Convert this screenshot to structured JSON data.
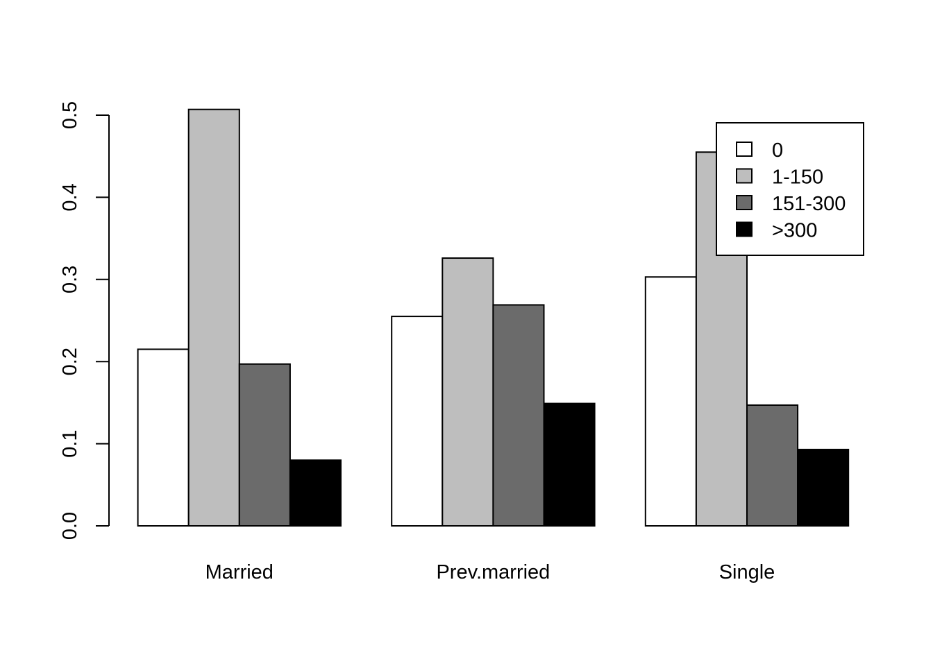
{
  "chart_data": {
    "type": "bar",
    "layout": "grouped",
    "categories": [
      "Married",
      "Prev.married",
      "Single"
    ],
    "series": [
      {
        "name": "0",
        "color": "#ffffff",
        "values": [
          0.215,
          0.255,
          0.303
        ]
      },
      {
        "name": "1-150",
        "color": "#bebebe",
        "values": [
          0.507,
          0.326,
          0.455
        ]
      },
      {
        "name": "151-300",
        "color": "#6b6b6b",
        "values": [
          0.197,
          0.269,
          0.147
        ]
      },
      {
        "name": ">300",
        "color": "#000000",
        "values": [
          0.08,
          0.149,
          0.093
        ]
      }
    ],
    "title": "",
    "xlabel": "",
    "ylabel": "",
    "ylim": [
      0,
      0.5
    ],
    "yticks": [
      "0.0",
      "0.1",
      "0.2",
      "0.3",
      "0.4",
      "0.5"
    ],
    "legend_position": "top-right",
    "grid": false
  }
}
